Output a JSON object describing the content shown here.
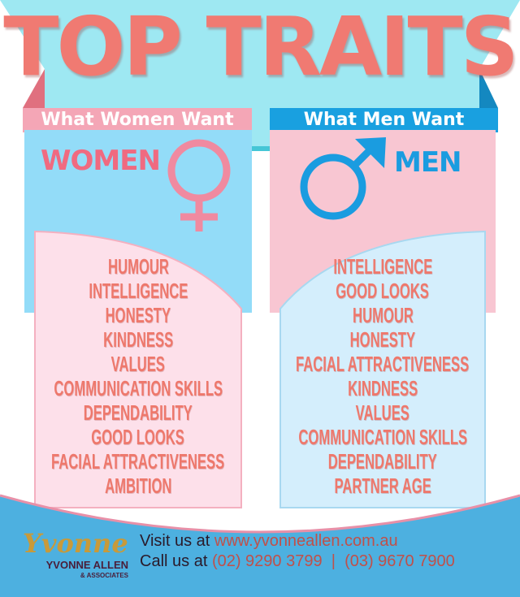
{
  "header": {
    "title": "TOP TRAITS",
    "women_ribbon": "What Women Want",
    "men_ribbon": "What Men Want"
  },
  "women": {
    "heading": "WOMEN",
    "icon": "female-symbol-icon",
    "traits": [
      "HUMOUR",
      "INTELLIGENCE",
      "HONESTY",
      "KINDNESS",
      "VALUES",
      "COMMUNICATION SKILLS",
      "DEPENDABILITY",
      "GOOD LOOKS",
      "FACIAL ATTRACTIVENESS",
      "AMBITION"
    ]
  },
  "men": {
    "heading": "MEN",
    "icon": "male-symbol-icon",
    "traits": [
      "INTELLIGENCE",
      "GOOD LOOKS",
      "HUMOUR",
      "HONESTY",
      "FACIAL ATTRACTIVENESS",
      "KINDNESS",
      "VALUES",
      "COMMUNICATION SKILLS",
      "DEPENDABILITY",
      "PARTNER AGE"
    ]
  },
  "footer": {
    "logo_script": "Yvonne",
    "logo_name": "YVONNE ALLEN",
    "logo_sub": "& ASSOCIATES",
    "visit_label": "Visit us at",
    "website": "www.yvonneallen.com.au",
    "call_label": "Call us at",
    "phone1": "(02) 9290 3799",
    "separator": "|",
    "phone2": "(03) 9670 7900"
  },
  "colors": {
    "cyan": "#9ee8f2",
    "pink": "#f4a6b6",
    "blue": "#19a0e0",
    "salmon": "#ee786c",
    "footer": "#4db0e0"
  }
}
